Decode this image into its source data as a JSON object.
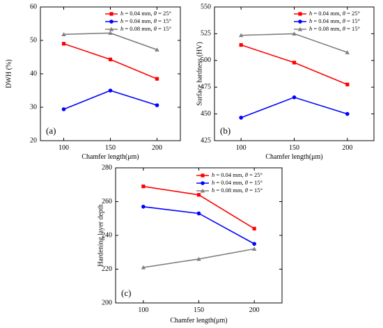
{
  "chart_data": [
    {
      "type": "line",
      "panel_label": "(a)",
      "xlabel": "Chamfer length(μm)",
      "ylabel": "DWH (%)",
      "x": [
        100,
        150,
        200
      ],
      "xticks": [
        "100",
        "150",
        "200"
      ],
      "xlim": [
        75,
        225
      ],
      "ylim": [
        20,
        60
      ],
      "yticks": [
        "20",
        "30",
        "40",
        "50",
        "60"
      ],
      "legend_position": "top-right",
      "series": [
        {
          "name": "h = 0.04 mm, θ = 25°",
          "color": "#ff0000",
          "marker": "square",
          "values": [
            49.0,
            44.3,
            38.5
          ]
        },
        {
          "name": "h = 0.04 mm, θ = 15°",
          "color": "#0000ff",
          "marker": "circle",
          "values": [
            29.4,
            35.0,
            30.6
          ]
        },
        {
          "name": "h = 0.08 mm, θ = 15°",
          "color": "#808080",
          "marker": "triangle",
          "values": [
            51.8,
            52.2,
            47.2
          ]
        }
      ]
    },
    {
      "type": "line",
      "panel_label": "(b)",
      "xlabel": "Chamfer length(μm)",
      "ylabel": "Surface hardness (HV)",
      "x": [
        100,
        150,
        200
      ],
      "xticks": [
        "100",
        "150",
        "200"
      ],
      "xlim": [
        75,
        225
      ],
      "ylim": [
        425,
        550
      ],
      "yticks": [
        "425",
        "450",
        "475",
        "500",
        "525",
        "550"
      ],
      "legend_position": "top-right",
      "series": [
        {
          "name": "h = 0.04 mm, θ = 25°",
          "color": "#ff0000",
          "marker": "square",
          "values": [
            514.5,
            498.0,
            477.5
          ]
        },
        {
          "name": "h = 0.04 mm, θ = 15°",
          "color": "#0000ff",
          "marker": "circle",
          "values": [
            446.5,
            465.5,
            450.0
          ]
        },
        {
          "name": "h = 0.08 mm, θ = 15°",
          "color": "#808080",
          "marker": "triangle",
          "values": [
            523.5,
            525.0,
            507.5
          ]
        }
      ]
    },
    {
      "type": "line",
      "panel_label": "(c)",
      "xlabel": "Chamfer length(μm)",
      "ylabel": "Hardening layer depth",
      "x": [
        100,
        150,
        200
      ],
      "xticks": [
        "100",
        "150",
        "200"
      ],
      "xlim": [
        75,
        225
      ],
      "ylim": [
        200,
        280
      ],
      "yticks": [
        "200",
        "220",
        "240",
        "260",
        "280"
      ],
      "legend_position": "top-right",
      "series": [
        {
          "name": "h = 0.04 mm, θ = 25°",
          "color": "#ff0000",
          "marker": "square",
          "values": [
            269,
            264,
            244
          ]
        },
        {
          "name": "h = 0.04 mm, θ = 15°",
          "color": "#0000ff",
          "marker": "circle",
          "values": [
            257,
            253,
            235
          ]
        },
        {
          "name": "h = 0.08 mm, θ = 15°",
          "color": "#808080",
          "marker": "triangle",
          "values": [
            221,
            226,
            232
          ]
        }
      ]
    }
  ]
}
